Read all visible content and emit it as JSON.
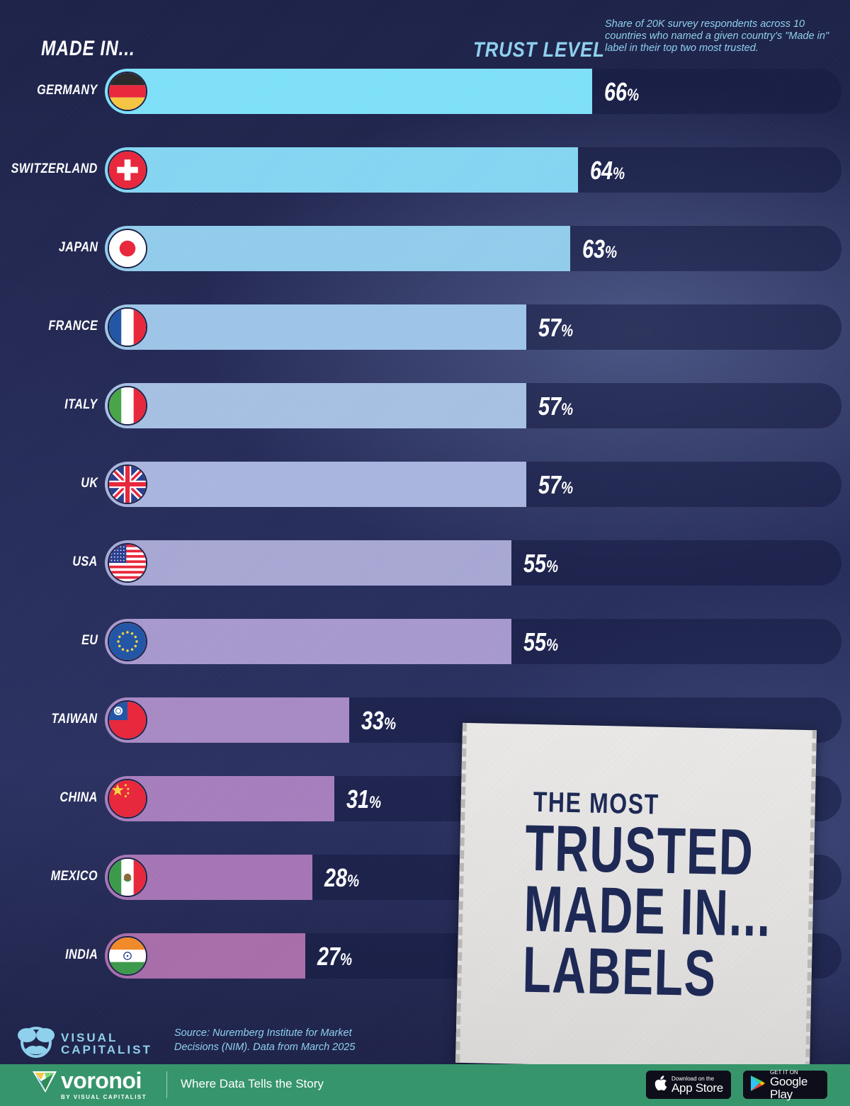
{
  "header": {
    "left_title": "MADE IN...",
    "right_title": "TRUST LEVEL",
    "note": "Share of 20K survey respondents across 10 countries who named a given country's \"Made in\" label in their top two most trusted."
  },
  "chart_data": {
    "type": "bar",
    "orientation": "horizontal",
    "title": "The Most Trusted Made In... Labels",
    "xlabel": "Trust Level",
    "ylabel": "Made in...",
    "value_suffix": "%",
    "xlim": [
      0,
      100
    ],
    "grid": false,
    "legend": "none",
    "categories": [
      "Germany",
      "Switzerland",
      "Japan",
      "France",
      "Italy",
      "UK",
      "USA",
      "EU",
      "Taiwan",
      "China",
      "Mexico",
      "India"
    ],
    "values": [
      66,
      64,
      63,
      57,
      57,
      57,
      55,
      55,
      33,
      31,
      28,
      27
    ],
    "annotation": "Share of 20K survey respondents across 10 countries who named a given country's \"Made in\" label in their top two most trusted."
  },
  "rows": [
    {
      "label": "GERMANY",
      "value": "66",
      "flag": "germany-flag-icon",
      "color": "#7ddff8"
    },
    {
      "label": "SWITZERLAND",
      "value": "64",
      "flag": "switzerland-flag-icon",
      "color": "#84d4f1"
    },
    {
      "label": "JAPAN",
      "value": "63",
      "flag": "japan-flag-icon",
      "color": "#91cbeb"
    },
    {
      "label": "FRANCE",
      "value": "57",
      "flag": "france-flag-icon",
      "color": "#9cc4e6"
    },
    {
      "label": "ITALY",
      "value": "57",
      "flag": "italy-flag-icon",
      "color": "#a5bfe2"
    },
    {
      "label": "UK",
      "value": "57",
      "flag": "uk-flag-icon",
      "color": "#a8b4dd"
    },
    {
      "label": "USA",
      "value": "55",
      "flag": "usa-flag-icon",
      "color": "#a6a6d3"
    },
    {
      "label": "EU",
      "value": "55",
      "flag": "eu-flag-icon",
      "color": "#a697cc"
    },
    {
      "label": "TAIWAN",
      "value": "33",
      "flag": "taiwan-flag-icon",
      "color": "#a688c3"
    },
    {
      "label": "CHINA",
      "value": "31",
      "flag": "china-flag-icon",
      "color": "#a47cbb"
    },
    {
      "label": "MEXICO",
      "value": "28",
      "flag": "mexico-flag-icon",
      "color": "#a473b3"
    },
    {
      "label": "INDIA",
      "value": "27",
      "flag": "india-flag-icon",
      "color": "#a66ca9"
    }
  ],
  "percent_sign": "%",
  "title_patch": {
    "line1": "THE MOST",
    "line2": "TRUSTED",
    "line3": "MADE IN...",
    "line4": "LABELS"
  },
  "footer": {
    "brand": "VISUAL\nCAPITALIST",
    "brand_line1": "VISUAL",
    "brand_line2": "CAPITALIST",
    "source_line1": "Source: Nuremberg Institute for Market",
    "source_line2": "Decisions (NIM). Data from March 2025",
    "voronoi_word": "voronoi",
    "voronoi_sub": "BY VISUAL CAPITALIST",
    "tagline": "Where Data Tells the Story",
    "app_store_small": "Download on the",
    "app_store_big": "App Store",
    "google_play_small": "GET IT ON",
    "google_play_big": "Google Play"
  },
  "colors": {
    "background": "#232955",
    "track": "#1b2050",
    "header_accent": "#8fd0ec",
    "patch_text": "#1e2a55",
    "footer_green": "#37956b"
  }
}
